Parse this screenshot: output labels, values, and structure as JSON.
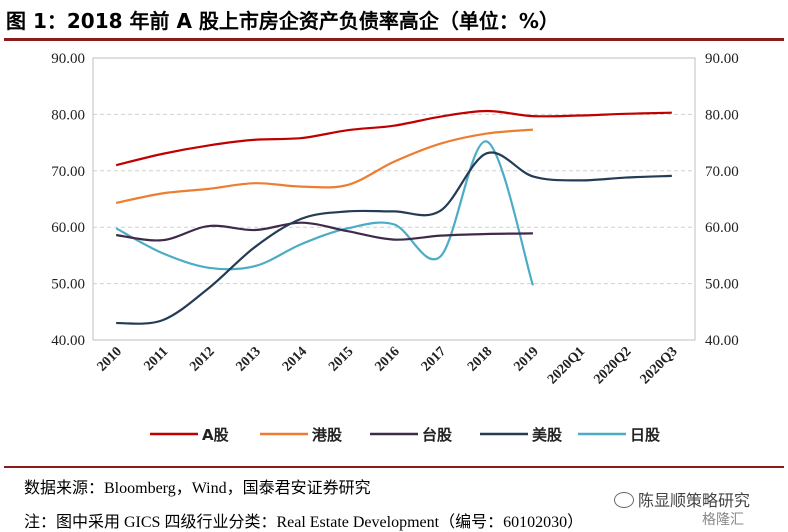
{
  "figure": {
    "title": "图 1：2018 年前 A 股上市房企资产负债率高企（单位：%）"
  },
  "chart_data": {
    "type": "line",
    "categories": [
      "2010",
      "2011",
      "2012",
      "2013",
      "2014",
      "2015",
      "2016",
      "2017",
      "2018",
      "2019",
      "2020Q1",
      "2020Q2",
      "2020Q3"
    ],
    "y_ticks": [
      "40.00",
      "50.00",
      "60.00",
      "70.00",
      "80.00",
      "90.00"
    ],
    "ylim": [
      40,
      90
    ],
    "grid": "horizontal dashed",
    "legend_position": "bottom",
    "colors": {
      "A股": "#C00000",
      "港股": "#ED7D31",
      "台股": "#3F2A4A",
      "美股": "#243C55",
      "日股": "#4BACC6"
    },
    "series": [
      {
        "name": "A股",
        "values": [
          71.0,
          73.0,
          74.5,
          75.5,
          75.8,
          77.2,
          78.0,
          79.6,
          80.6,
          79.7,
          79.8,
          80.1,
          80.3
        ]
      },
      {
        "name": "港股",
        "values": [
          64.3,
          66.0,
          66.8,
          67.8,
          67.2,
          67.5,
          71.6,
          74.8,
          76.6,
          77.3,
          null,
          null,
          null
        ]
      },
      {
        "name": "台股",
        "values": [
          58.6,
          57.7,
          60.2,
          59.5,
          60.8,
          59.3,
          57.8,
          58.5,
          58.8,
          58.9,
          null,
          null,
          null
        ]
      },
      {
        "name": "美股",
        "values": [
          43.0,
          43.5,
          49.2,
          56.5,
          61.5,
          62.8,
          62.8,
          62.9,
          73.1,
          69.0,
          68.3,
          68.8,
          69.1
        ]
      },
      {
        "name": "日股",
        "values": [
          59.8,
          55.4,
          52.8,
          53.1,
          57.0,
          59.8,
          60.5,
          54.8,
          75.2,
          49.7,
          null,
          null,
          null
        ]
      }
    ]
  },
  "footer": {
    "source": "数据来源：Bloomberg，Wind，国泰君安证券研究",
    "remark": "注：图中采用 GICS 四级行业分类：Real Estate Development（编号：60102030）",
    "watermark_main": "陈显顺策略研究",
    "watermark_sub": "格隆汇"
  }
}
